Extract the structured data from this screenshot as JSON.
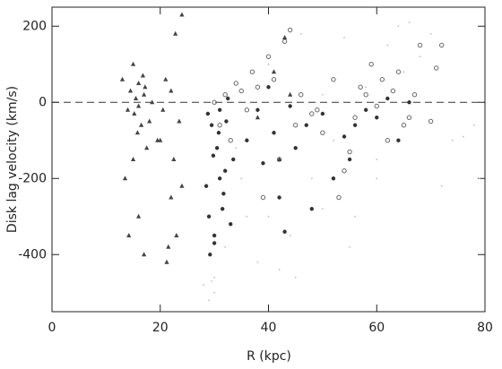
{
  "chart_data": {
    "type": "scatter",
    "xlabel": "R (kpc)",
    "ylabel": "Disk lag velocity (km/s)",
    "xlim": [
      0,
      80
    ],
    "xticks": [
      0,
      20,
      40,
      60,
      80
    ],
    "ylim": [
      -550,
      250
    ],
    "yticks": [
      -400,
      -200,
      0,
      200
    ],
    "hline": 0,
    "series": [
      {
        "marker": "dot",
        "color": "#bbbbbb",
        "x": [
          28,
          29,
          30,
          32,
          34,
          36,
          38,
          40,
          42,
          44,
          46,
          48,
          50,
          52,
          54,
          56,
          58,
          60,
          62,
          64,
          66,
          68,
          70,
          72,
          74,
          35,
          40,
          45,
          50,
          55,
          60,
          65,
          30,
          29.5,
          76,
          78,
          79
        ],
        "y": [
          -480,
          -520,
          -460,
          -380,
          -120,
          -300,
          -420,
          100,
          -440,
          -350,
          180,
          -200,
          -280,
          -100,
          170,
          -300,
          40,
          -200,
          150,
          200,
          210,
          120,
          180,
          -220,
          -100,
          -200,
          -300,
          -460,
          20,
          -380,
          -150,
          80,
          -500,
          -470,
          -90,
          -60,
          -200
        ]
      },
      {
        "marker": "open-circle",
        "color": "#666666",
        "x": [
          30,
          31,
          32,
          33,
          34,
          35,
          36,
          37,
          38,
          39,
          40,
          41,
          42,
          43,
          44,
          45,
          46,
          48,
          50,
          52,
          54,
          56,
          57,
          58,
          59,
          60,
          61,
          62,
          63,
          64,
          65,
          66,
          67,
          68,
          70,
          71,
          72,
          55,
          53,
          49
        ],
        "y": [
          0,
          -60,
          20,
          -100,
          50,
          30,
          -20,
          80,
          40,
          -250,
          120,
          60,
          -150,
          160,
          190,
          -60,
          20,
          -30,
          -80,
          60,
          -180,
          -40,
          40,
          20,
          100,
          -10,
          60,
          -100,
          30,
          80,
          -60,
          -40,
          20,
          150,
          -50,
          90,
          150,
          -130,
          -250,
          -20
        ]
      },
      {
        "marker": "circle",
        "color": "#333333",
        "x": [
          28.5,
          29,
          29.5,
          30,
          30.5,
          31,
          31.5,
          32,
          32.5,
          33,
          29.2,
          30.8,
          31.7,
          28.8,
          33.5,
          36,
          38,
          39,
          40,
          41,
          42,
          43,
          44,
          45,
          47,
          48,
          50,
          52,
          54,
          55,
          56,
          58,
          60,
          62,
          64,
          66,
          30,
          31,
          32.2,
          29.8
        ],
        "y": [
          -220,
          -300,
          -60,
          -350,
          -120,
          -20,
          -280,
          -180,
          10,
          -320,
          -400,
          -80,
          -240,
          -30,
          -150,
          -100,
          -20,
          -160,
          40,
          -80,
          -250,
          -340,
          -10,
          -120,
          -60,
          -280,
          -30,
          -200,
          -90,
          -150,
          -60,
          -20,
          -40,
          10,
          -100,
          0,
          -370,
          -200,
          -50,
          -140
        ]
      },
      {
        "marker": "triangle",
        "color": "#444444",
        "x": [
          13,
          14,
          14.5,
          15,
          15,
          15.5,
          16,
          16,
          16.5,
          17,
          17,
          17.5,
          18,
          13.5,
          15.2,
          16.8,
          14.2,
          18.5,
          20,
          20.5,
          21,
          21.5,
          22,
          22,
          22.5,
          23,
          23.5,
          24,
          21.2,
          22.8,
          24,
          19.5,
          16,
          15.8,
          17.2,
          41,
          42,
          43,
          38,
          44
        ],
        "y": [
          60,
          -20,
          30,
          100,
          -150,
          10,
          -300,
          50,
          -60,
          -400,
          20,
          -120,
          -50,
          -200,
          -30,
          70,
          -350,
          0,
          -100,
          -20,
          60,
          -380,
          -250,
          30,
          -150,
          -350,
          -50,
          230,
          -420,
          180,
          -220,
          -100,
          -10,
          -80,
          40,
          80,
          -150,
          170,
          -40,
          20
        ]
      }
    ]
  }
}
